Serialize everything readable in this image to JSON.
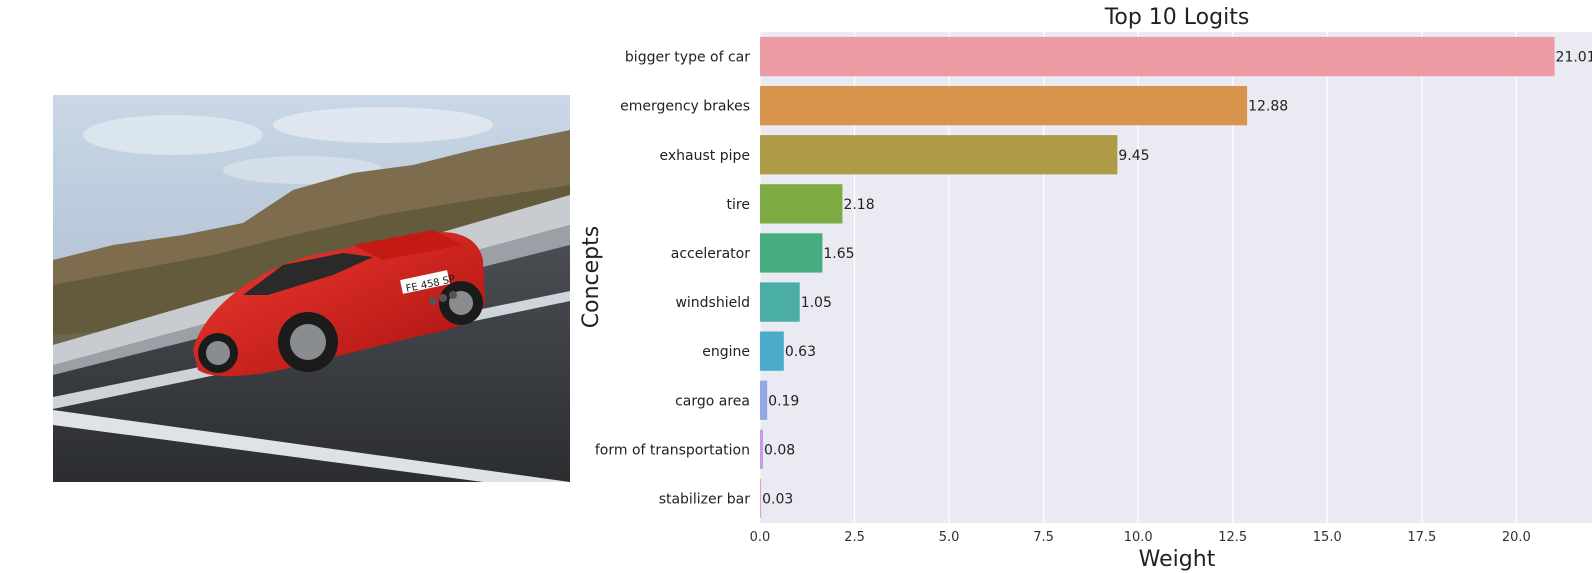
{
  "photo": {
    "description_icon": "car-photo",
    "plate_text": "FE 458 SP"
  },
  "chart_data": {
    "type": "bar",
    "orientation": "horizontal",
    "title": "Top 10 Logits",
    "xlabel": "Weight",
    "ylabel": "Concepts",
    "categories": [
      "bigger type of car",
      "emergency brakes",
      "exhaust pipe",
      "tire",
      "accelerator",
      "windshield",
      "engine",
      "cargo area",
      "form of transportation",
      "stabilizer bar"
    ],
    "values": [
      21.01,
      12.88,
      9.45,
      2.18,
      1.65,
      1.05,
      0.63,
      0.19,
      0.08,
      0.03
    ],
    "value_labels": [
      "21.01",
      "12.88",
      "9.45",
      "2.18",
      "1.65",
      "1.05",
      "0.63",
      "0.19",
      "0.08",
      "0.03"
    ],
    "colors": [
      "#ec9aa4",
      "#d8944c",
      "#ad9c45",
      "#7daa42",
      "#45ad80",
      "#4aaea7",
      "#4cabc8",
      "#94a8e6",
      "#c99ae6",
      "#e69dd5"
    ],
    "xticks": [
      0.0,
      2.5,
      5.0,
      7.5,
      10.0,
      12.5,
      15.0,
      17.5,
      20.0
    ],
    "xtick_labels": [
      "0.0",
      "2.5",
      "5.0",
      "7.5",
      "10.0",
      "12.5",
      "15.0",
      "17.5",
      "20.0"
    ],
    "xlim": [
      0,
      22
    ],
    "grid": true,
    "background_color": "#eaeaf2"
  }
}
